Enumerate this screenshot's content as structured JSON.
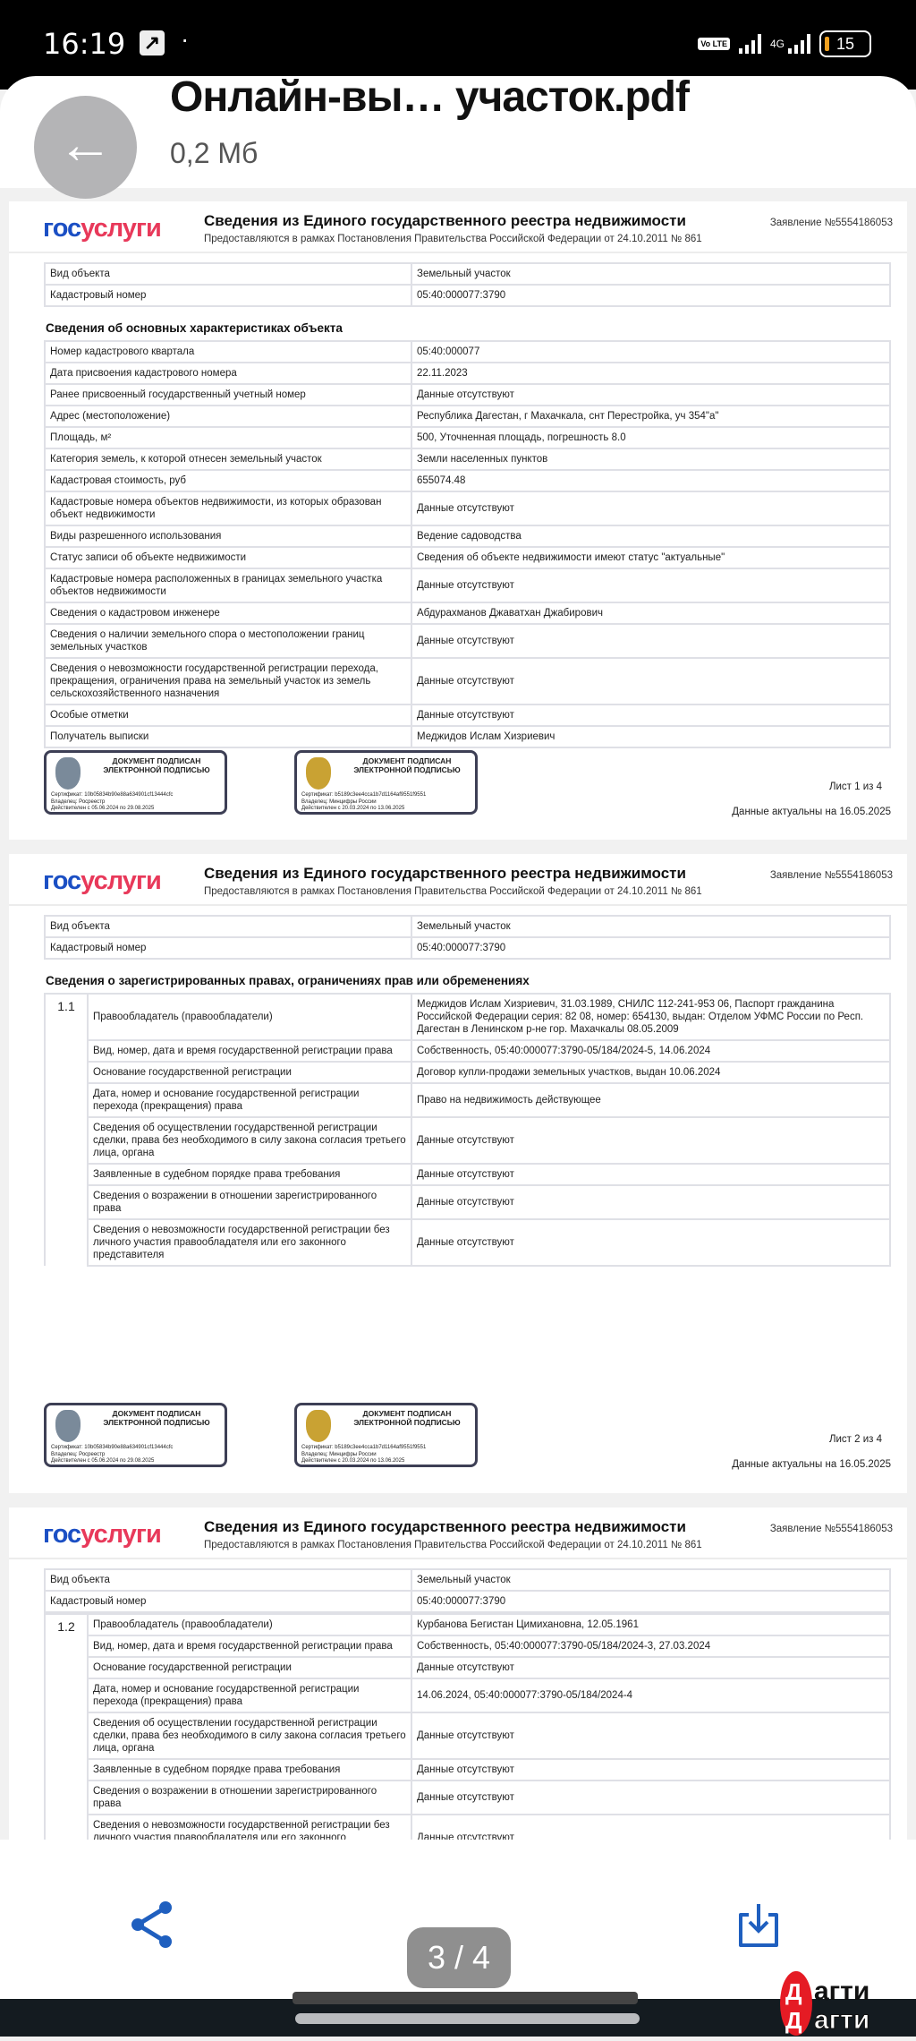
{
  "status_bar": {
    "time": "16:19",
    "volte": "Vo LTE",
    "network": "4G",
    "battery": "15"
  },
  "app_bar": {
    "title": "Онлайн-вы… участок.pdf",
    "file_size": "0,2 Мб",
    "back_icon": "arrow-left-icon"
  },
  "doc_header": {
    "logo_part1": "гос",
    "logo_part2": "услуги",
    "title": "Сведения из Единого государственного реестра недвижимости",
    "subtitle": "Предоставляются в рамках Постановления Правительства Российской Федерации от 24.10.2011 № 861",
    "application": "Заявление №5554186053"
  },
  "stamps": [
    {
      "title": "ДОКУМЕНТ ПОДПИСАН ЭЛЕКТРОННОЙ ПОДПИСЬЮ",
      "cert": "Сертификат: 10b05834b90e88a634901cf13444cfc",
      "owner": "Владелец: Росреестр",
      "valid": "Действителен с 05.06.2024 по 29.08.2025",
      "emblem_color": "#7a8a9a"
    },
    {
      "title": "ДОКУМЕНТ ПОДПИСАН ЭЛЕКТРОННОЙ ПОДПИСЬЮ",
      "cert": "Сертификат: b5189c3ee4cca1b7d1164af9551f9551",
      "owner": "Владелец: Минцифры России",
      "valid": "Действителен с 20.03.2024 по 13.06.2025",
      "emblem_color": "#c9a233"
    }
  ],
  "pages": [
    {
      "footer_sheet": "Лист 1 из 4",
      "footer_date": "Данные актуальны на 16.05.2025",
      "blocks": [
        {
          "rows": [
            [
              "Вид объекта",
              "Земельный участок"
            ],
            [
              "Кадастровый номер",
              "05:40:000077:3790"
            ]
          ]
        },
        {
          "section": "Сведения об основных характеристиках объекта",
          "rows": [
            [
              "Номер кадастрового квартала",
              "05:40:000077"
            ],
            [
              "Дата присвоения кадастрового номера",
              "22.11.2023"
            ],
            [
              "Ранее присвоенный государственный учетный номер",
              "Данные отсутствуют"
            ],
            [
              "Адрес (местоположение)",
              "Республика Дагестан, г Махачкала, снт Перестройка, уч 354\"а\""
            ],
            [
              "Площадь, м²",
              "500, Уточненная площадь, погрешность 8.0"
            ],
            [
              "Категория земель, к которой отнесен земельный участок",
              "Земли населенных пунктов"
            ],
            [
              "Кадастровая стоимость, руб",
              "655074.48"
            ],
            [
              "Кадастровые номера объектов недвижимости, из которых образован объект недвижимости",
              "Данные отсутствуют"
            ],
            [
              "Виды разрешенного использования",
              "Ведение садоводства"
            ],
            [
              "Статус записи об объекте недвижимости",
              "Сведения об объекте недвижимости имеют статус \"актуальные\""
            ],
            [
              "Кадастровые номера расположенных в границах земельного участка объектов недвижимости",
              "Данные отсутствуют"
            ],
            [
              "Сведения о кадастровом инженере",
              "Абдурахманов Джаватхан Джабирович"
            ],
            [
              "Сведения о наличии земельного спора о местоположении границ земельных участков",
              "Данные отсутствуют"
            ],
            [
              "Сведения о невозможности государственной регистрации перехода, прекращения, ограничения права на земельный участок из земель сельскохозяйственного назначения",
              "Данные отсутствуют"
            ],
            [
              "Особые отметки",
              "Данные отсутствуют"
            ],
            [
              "Получатель выписки",
              "Меджидов Ислам Хизриевич"
            ]
          ]
        }
      ]
    },
    {
      "footer_sheet": "Лист 2 из 4",
      "footer_date": "Данные актуальны на 16.05.2025",
      "blocks": [
        {
          "rows": [
            [
              "Вид объекта",
              "Земельный участок"
            ],
            [
              "Кадастровый номер",
              "05:40:000077:3790"
            ]
          ]
        },
        {
          "section": "Сведения о зарегистрированных правах, ограничениях прав или обременениях",
          "number": "1.1",
          "rows": [
            [
              "Правообладатель (правообладатели)",
              "Меджидов Ислам Хизриевич, 31.03.1989, СНИЛС 112-241-953 06, Паспорт гражданина Российской Федерации серия: 82 08, номер: 654130, выдан: Отделом УФМС России по Респ. Дагестан в Ленинском р-не гор. Махачкалы 08.05.2009"
            ],
            [
              "Вид, номер, дата и время государственной регистрации права",
              "Собственность, 05:40:000077:3790-05/184/2024-5, 14.06.2024"
            ],
            [
              "Основание государственной регистрации",
              "Договор купли-продажи земельных участков, выдан  10.06.2024"
            ],
            [
              "Дата, номер и основание государственной регистрации перехода (прекращения) права",
              "Право на недвижимость действующее"
            ],
            [
              "Сведения об осуществлении государственной регистрации сделки, права без необходимого в силу закона согласия третьего лица, органа",
              "Данные отсутствуют"
            ],
            [
              "Заявленные в судебном порядке права требования",
              "Данные отсутствуют"
            ],
            [
              "Сведения о возражении в отношении зарегистрированного права",
              "Данные отсутствуют"
            ],
            [
              "Сведения о невозможности государственной регистрации без личного участия правообладателя или его законного представителя",
              "Данные отсутствуют"
            ]
          ]
        }
      ]
    },
    {
      "blocks": [
        {
          "rows": [
            [
              "Вид объекта",
              "Земельный участок"
            ],
            [
              "Кадастровый номер",
              "05:40:000077:3790"
            ]
          ]
        },
        {
          "number": "1.2",
          "rows": [
            [
              "Правообладатель (правообладатели)",
              "Курбанова Бегистан Цимихановна, 12.05.1961"
            ],
            [
              "Вид, номер, дата и время государственной регистрации права",
              "Собственность, 05:40:000077:3790-05/184/2024-3, 27.03.2024"
            ],
            [
              "Основание государственной регистрации",
              "Данные отсутствуют"
            ],
            [
              "Дата, номер и основание государственной регистрации перехода (прекращения) права",
              "14.06.2024, 05:40:000077:3790-05/184/2024-4"
            ],
            [
              "Сведения об осуществлении государственной регистрации сделки, права без необходимого в силу закона согласия третьего лица, органа",
              "Данные отсутствуют"
            ],
            [
              "Заявленные в судебном порядке права требования",
              "Данные отсутствуют"
            ],
            [
              "Сведения о возражении в отношении зарегистрированного права",
              "Данные отсутствуют"
            ],
            [
              "Сведения о невозможности государственной регистрации без личного участия правообладателя или его законного представителя",
              "Данные отсутствуют"
            ]
          ]
        }
      ]
    }
  ],
  "bottom_bar": {
    "share_icon": "share-icon",
    "download_icon": "download-icon",
    "page_indicator": "3 / 4",
    "accent": "#1f5fbf"
  },
  "watermark": {
    "text": "Дагти"
  }
}
